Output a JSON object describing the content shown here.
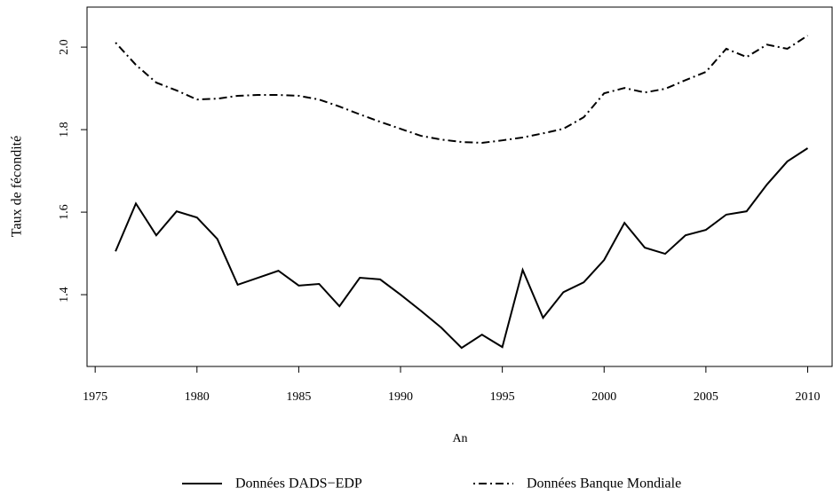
{
  "chart_data": {
    "type": "line",
    "xlabel": "An",
    "ylabel": "Taux de fécondité",
    "x": [
      1976,
      1977,
      1978,
      1979,
      1980,
      1981,
      1982,
      1983,
      1984,
      1985,
      1986,
      1987,
      1988,
      1989,
      1990,
      1991,
      1992,
      1993,
      1994,
      1995,
      1996,
      1997,
      1998,
      1999,
      2000,
      2001,
      2002,
      2003,
      2004,
      2005,
      2006,
      2007,
      2008,
      2009,
      2010
    ],
    "series": [
      {
        "name": "Données DADS−EDP",
        "color": "#000000",
        "dash": "solid",
        "values": [
          1.505,
          1.621,
          1.544,
          1.602,
          1.587,
          1.535,
          1.424,
          1.441,
          1.458,
          1.422,
          1.426,
          1.372,
          1.441,
          1.437,
          1.4,
          1.361,
          1.32,
          1.271,
          1.303,
          1.273,
          1.46,
          1.344,
          1.406,
          1.43,
          1.484,
          1.574,
          1.514,
          1.499,
          1.544,
          1.557,
          1.594,
          1.602,
          1.667,
          1.723,
          1.755
        ]
      },
      {
        "name": "Données Banque Mondiale",
        "color": "#000000",
        "dash": "dotdash",
        "values": [
          2.011,
          1.957,
          1.914,
          1.895,
          1.873,
          1.875,
          1.882,
          1.884,
          1.884,
          1.882,
          1.873,
          1.856,
          1.837,
          1.819,
          1.802,
          1.785,
          1.776,
          1.77,
          1.768,
          1.774,
          1.781,
          1.791,
          1.802,
          1.83,
          1.888,
          1.901,
          1.89,
          1.899,
          1.92,
          1.94,
          1.996,
          1.976,
          2.006,
          1.996,
          2.028
        ]
      }
    ],
    "xlim": [
      1974.6,
      2011.2
    ],
    "ylim": [
      1.226,
      2.097
    ],
    "xticks": [
      1975,
      1980,
      1985,
      1990,
      1995,
      2000,
      2005,
      2010
    ],
    "yticks": [
      1.4,
      1.6,
      1.8,
      {
        "value": 2,
        "label": "2.0"
      }
    ],
    "grid": false,
    "legend": "bottom"
  }
}
